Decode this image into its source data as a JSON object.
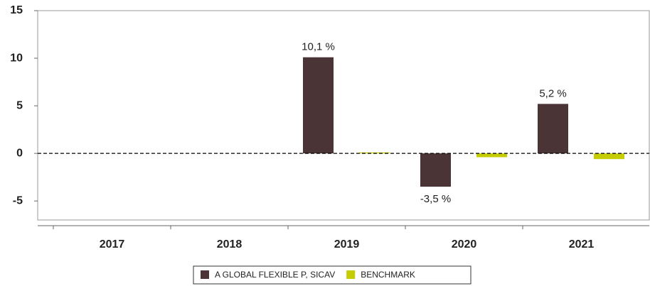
{
  "chart_data": {
    "type": "bar",
    "categories": [
      "2017",
      "2018",
      "2019",
      "2020",
      "2021"
    ],
    "series": [
      {
        "name": "A GLOBAL FLEXIBLE P, SICAV",
        "color": "#4a3436",
        "values": [
          null,
          null,
          10.1,
          -3.5,
          5.2
        ],
        "value_labels": [
          null,
          null,
          "10,1 %",
          "-3,5 %",
          "5,2 %"
        ]
      },
      {
        "name": "BENCHMARK",
        "color": "#c5cc00",
        "values": [
          null,
          null,
          0.1,
          -0.4,
          -0.6
        ]
      }
    ],
    "ylim": [
      -7,
      15
    ],
    "yticks": [
      -5,
      0,
      5,
      10,
      15
    ],
    "grid": false
  }
}
